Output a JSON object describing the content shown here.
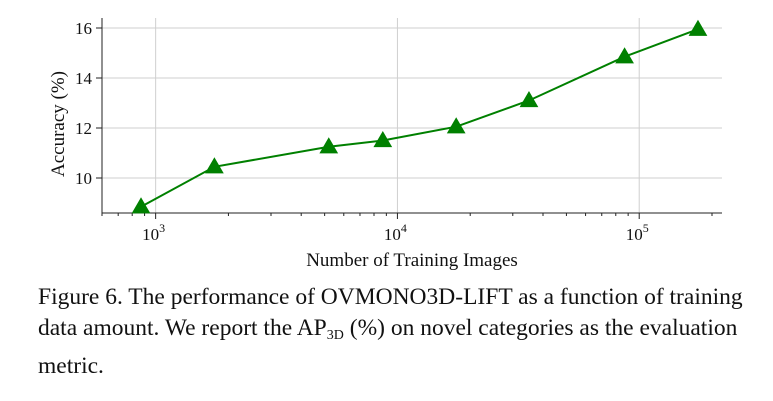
{
  "chart_data": {
    "type": "line",
    "x_scale": "log",
    "x": [
      870,
      1750,
      5200,
      8700,
      17500,
      35000,
      87000,
      175000
    ],
    "series": [
      {
        "values": [
          8.85,
          10.45,
          11.25,
          11.5,
          12.05,
          13.1,
          14.85,
          15.95
        ],
        "color": "#008000",
        "marker": "triangle"
      }
    ],
    "xlim": [
      600,
      220000
    ],
    "ylim": [
      8.6,
      16.4
    ],
    "yticks": [
      10,
      12,
      14,
      16
    ],
    "ytick_labels": [
      "10",
      "12",
      "14",
      "16"
    ],
    "xtick_labels": [
      {
        "base": "10",
        "exp": "3"
      },
      {
        "base": "10",
        "exp": "4"
      },
      {
        "base": "10",
        "exp": "5"
      }
    ],
    "xlabel": "Number of Training Images",
    "ylabel": "Accuracy (%)",
    "grid": true
  },
  "caption": {
    "prefix": "Figure 6. The performance of OVM",
    "smallcaps": "ONO",
    "after_smallcaps": "3D-LIFT as a function of training data amount. We report the AP",
    "subscript": "3D",
    "suffix": " (%) on novel categories as the evaluation metric."
  }
}
